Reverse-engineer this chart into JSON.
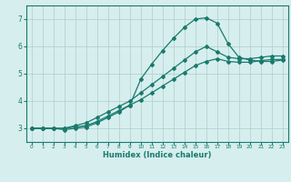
{
  "title": "",
  "xlabel": "Humidex (Indice chaleur)",
  "ylabel": "",
  "bg_color": "#d6eeee",
  "line_color": "#1a7a6e",
  "grid_color": "#b0cccc",
  "xlim": [
    -0.5,
    23.5
  ],
  "ylim": [
    2.5,
    7.5
  ],
  "yticks": [
    3,
    4,
    5,
    6,
    7
  ],
  "xticks": [
    0,
    1,
    2,
    3,
    4,
    5,
    6,
    7,
    8,
    9,
    10,
    11,
    12,
    13,
    14,
    15,
    16,
    17,
    18,
    19,
    20,
    21,
    22,
    23
  ],
  "line1_x": [
    0,
    1,
    2,
    3,
    4,
    5,
    6,
    7,
    8,
    9,
    10,
    11,
    12,
    13,
    14,
    15,
    16,
    17,
    18,
    19,
    20,
    21,
    22,
    23
  ],
  "line1_y": [
    3.0,
    3.0,
    3.0,
    3.0,
    3.1,
    3.2,
    3.4,
    3.6,
    3.8,
    4.0,
    4.3,
    4.6,
    4.9,
    5.2,
    5.5,
    5.8,
    6.0,
    5.8,
    5.6,
    5.55,
    5.55,
    5.6,
    5.65,
    5.65
  ],
  "line2_x": [
    0,
    1,
    2,
    3,
    4,
    5,
    6,
    7,
    8,
    9,
    10,
    11,
    12,
    13,
    14,
    15,
    16,
    17,
    18,
    19,
    20,
    21,
    22,
    23
  ],
  "line2_y": [
    3.0,
    3.0,
    3.0,
    3.0,
    3.05,
    3.1,
    3.25,
    3.45,
    3.65,
    3.85,
    4.05,
    4.3,
    4.55,
    4.8,
    5.05,
    5.3,
    5.45,
    5.55,
    5.45,
    5.42,
    5.42,
    5.48,
    5.52,
    5.52
  ],
  "line3_x": [
    0,
    1,
    2,
    3,
    4,
    5,
    6,
    7,
    8,
    9,
    10,
    11,
    12,
    13,
    14,
    15,
    16,
    17,
    18,
    19,
    20,
    21,
    22,
    23
  ],
  "line3_y": [
    3.0,
    3.0,
    3.0,
    2.95,
    3.0,
    3.05,
    3.2,
    3.4,
    3.6,
    3.85,
    4.8,
    5.35,
    5.85,
    6.3,
    6.7,
    7.0,
    7.05,
    6.85,
    6.1,
    5.6,
    5.5,
    5.45,
    5.45,
    5.5
  ]
}
